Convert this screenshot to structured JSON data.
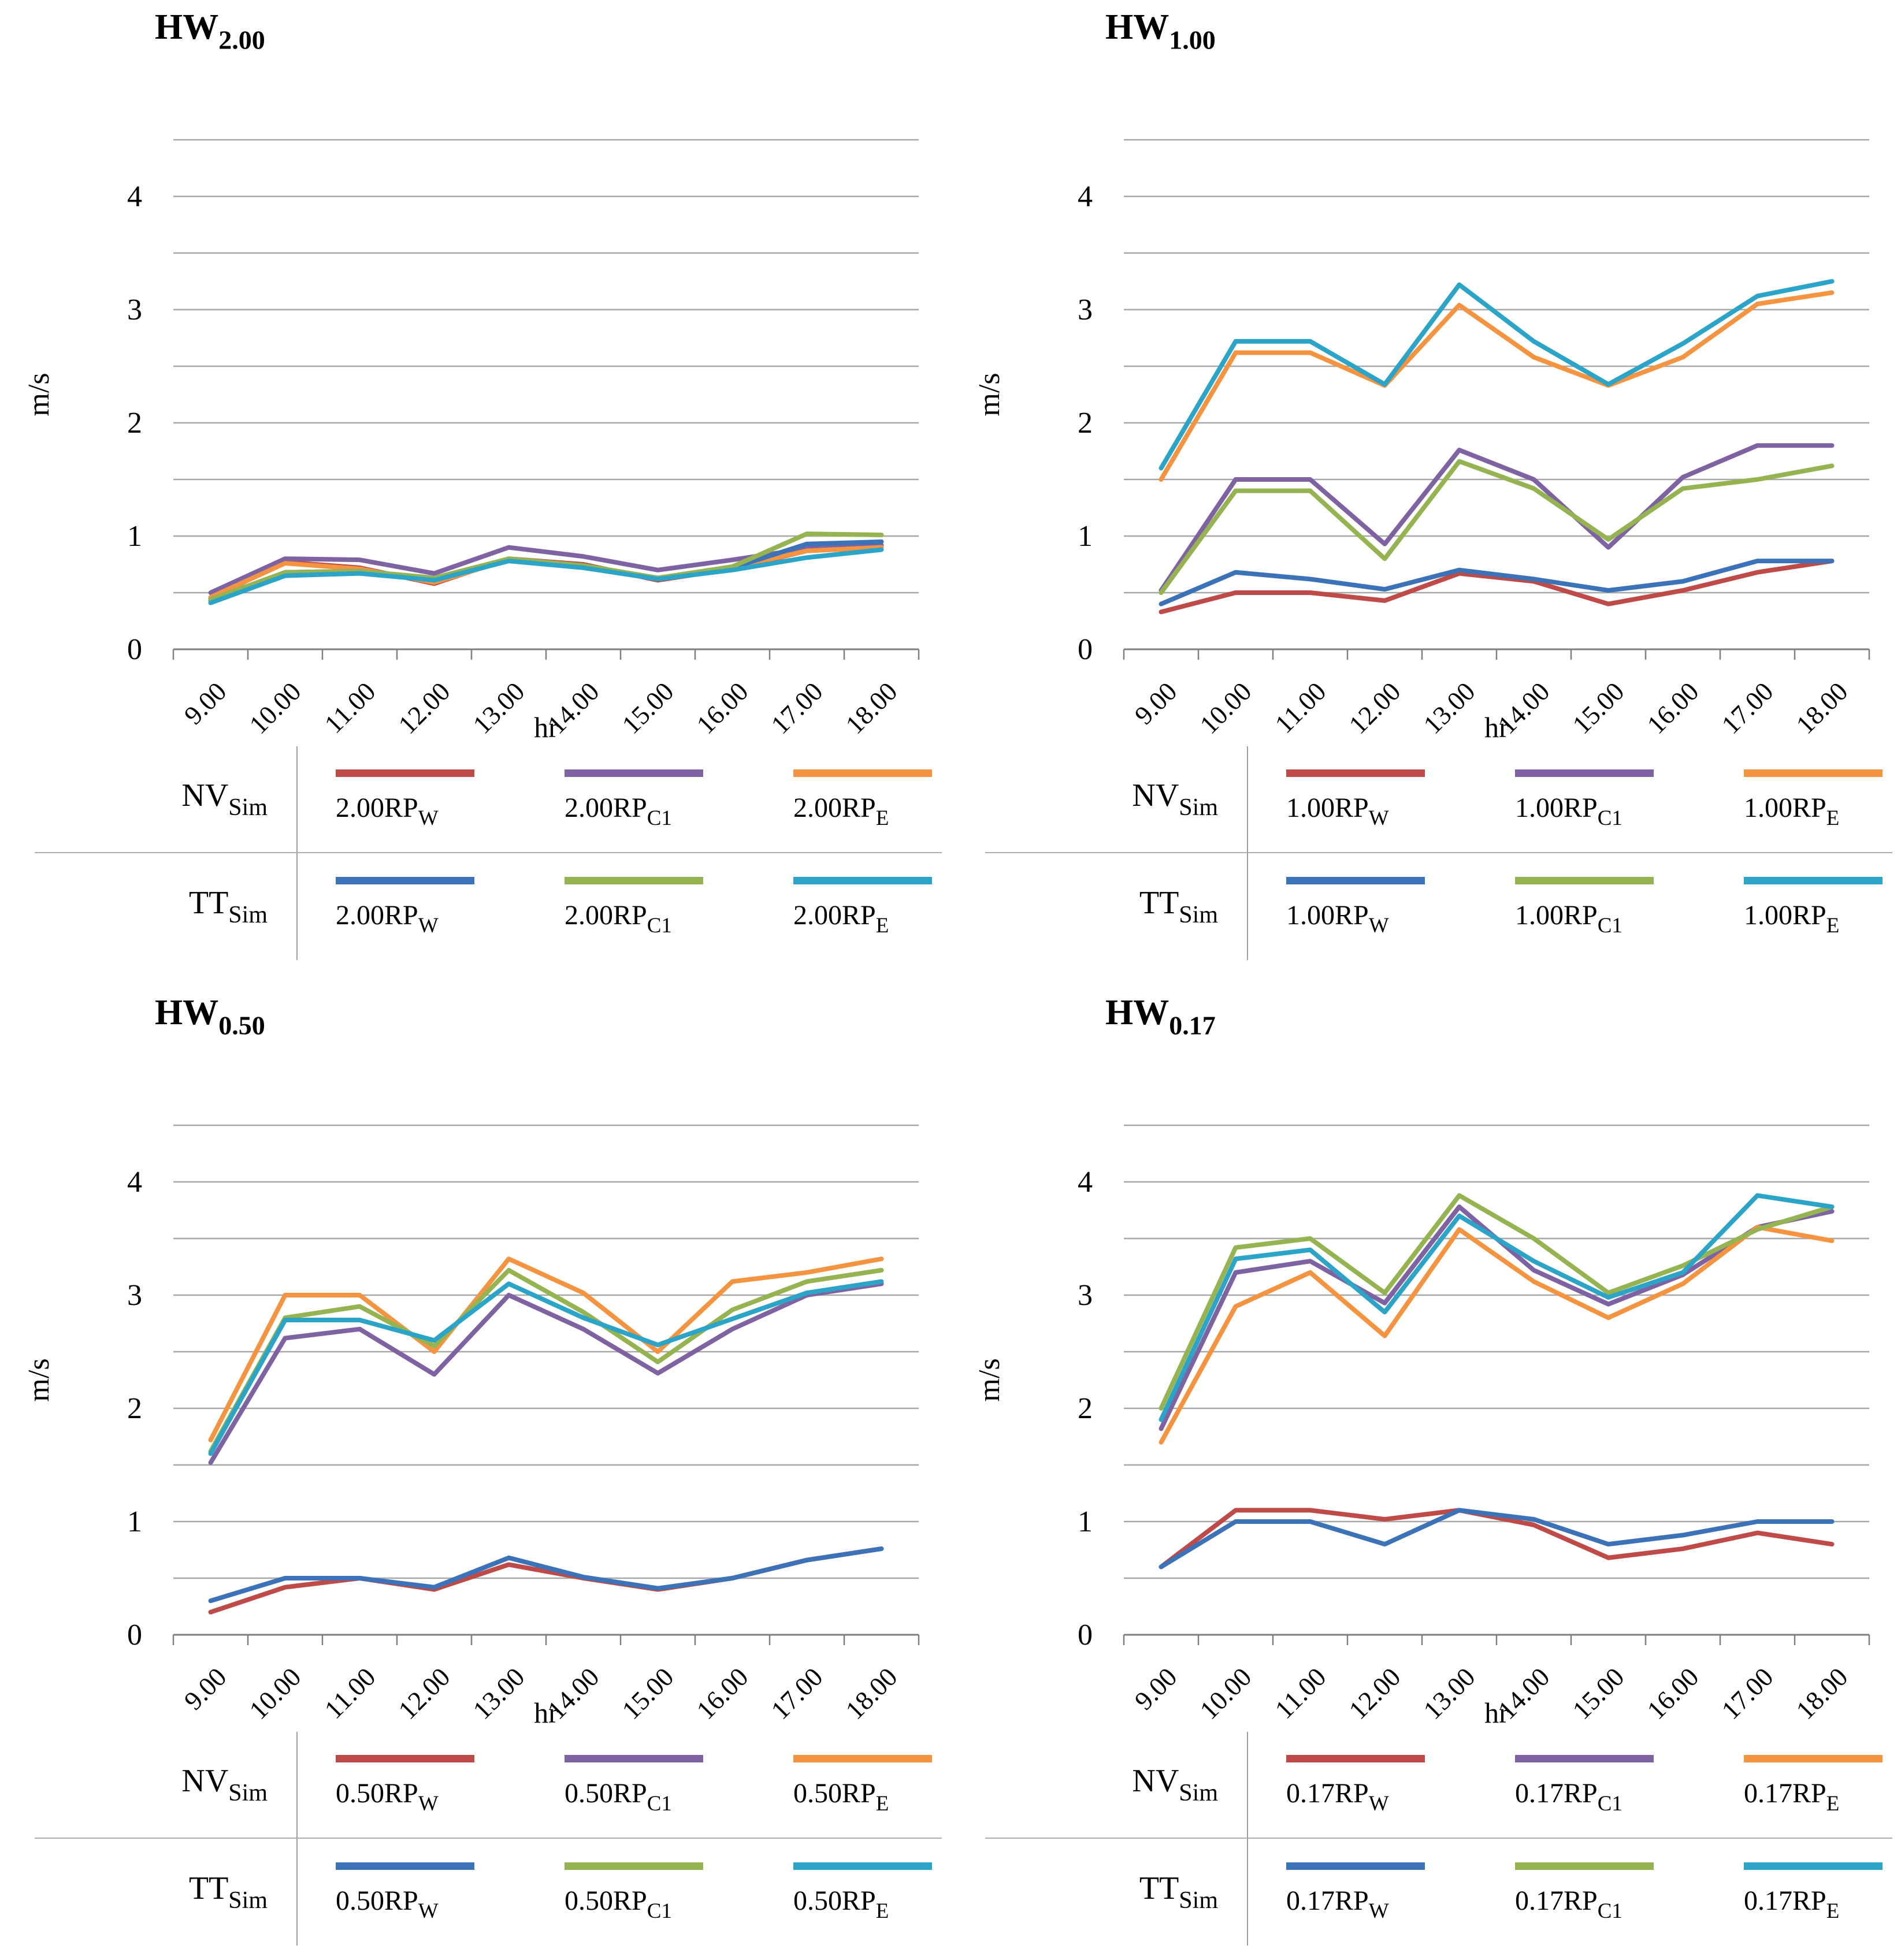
{
  "figure": {
    "background": "#ffffff",
    "grid_color": "#a7a7a7",
    "axis_color": "#7f7f7f",
    "text_color": "#000000"
  },
  "chart_data": [
    {
      "type": "line",
      "panel_id": "hw-2.00",
      "title": "HW",
      "title_subscript": "2.00",
      "ylabel": "m/s",
      "xlabel": "hr",
      "ylim": [
        0,
        4.5
      ],
      "grid_step": 0.5,
      "grid_on": true,
      "legend_position": "bottom-table",
      "ytick_labels": [
        "0",
        "1",
        "2",
        "3",
        "4"
      ],
      "categories": [
        "9.00",
        "10.00",
        "11.00",
        "12.00",
        "13.00",
        "14.00",
        "15.00",
        "16.00",
        "17.00",
        "18.00"
      ],
      "legend_groups": [
        {
          "name": "NV",
          "subscript": "Sim"
        },
        {
          "name": "TT",
          "subscript": "Sim"
        }
      ],
      "series": [
        {
          "group": "NV",
          "legend": "2.00RP",
          "legend_subscript": "W",
          "color": "#be4b48",
          "values": [
            0.45,
            0.77,
            0.72,
            0.58,
            0.8,
            0.75,
            0.61,
            0.71,
            0.87,
            0.9
          ]
        },
        {
          "group": "NV",
          "legend": "2.00RP",
          "legend_subscript": "C1",
          "color": "#7e62a1",
          "values": [
            0.5,
            0.8,
            0.79,
            0.67,
            0.9,
            0.82,
            0.7,
            0.79,
            0.89,
            0.92
          ]
        },
        {
          "group": "NV",
          "legend": "2.00RP",
          "legend_subscript": "E",
          "color": "#f59440",
          "values": [
            0.46,
            0.76,
            0.71,
            0.59,
            0.79,
            0.74,
            0.62,
            0.72,
            0.87,
            0.9
          ]
        },
        {
          "group": "TT",
          "legend": "2.00RP",
          "legend_subscript": "W",
          "color": "#3c72b8",
          "values": [
            0.43,
            0.68,
            0.69,
            0.63,
            0.79,
            0.74,
            0.63,
            0.72,
            0.93,
            0.95
          ]
        },
        {
          "group": "TT",
          "legend": "2.00RP",
          "legend_subscript": "C1",
          "color": "#95b451",
          "values": [
            0.44,
            0.68,
            0.69,
            0.63,
            0.8,
            0.74,
            0.63,
            0.73,
            1.02,
            1.01
          ]
        },
        {
          "group": "TT",
          "legend": "2.00RP",
          "legend_subscript": "E",
          "color": "#2ba4c7",
          "values": [
            0.41,
            0.65,
            0.67,
            0.61,
            0.78,
            0.72,
            0.62,
            0.7,
            0.81,
            0.88
          ]
        }
      ]
    },
    {
      "type": "line",
      "panel_id": "hw-1.00",
      "title": "HW",
      "title_subscript": "1.00",
      "ylabel": "m/s",
      "xlabel": "hr",
      "ylim": [
        0,
        4.5
      ],
      "grid_step": 0.5,
      "grid_on": true,
      "legend_position": "bottom-table",
      "ytick_labels": [
        "0",
        "1",
        "2",
        "3",
        "4"
      ],
      "categories": [
        "9.00",
        "10.00",
        "11.00",
        "12.00",
        "13.00",
        "14.00",
        "15.00",
        "16.00",
        "17.00",
        "18.00"
      ],
      "legend_groups": [
        {
          "name": "NV",
          "subscript": "Sim"
        },
        {
          "name": "TT",
          "subscript": "Sim"
        }
      ],
      "series": [
        {
          "group": "NV",
          "legend": "1.00RP",
          "legend_subscript": "W",
          "color": "#be4b48",
          "values": [
            0.33,
            0.5,
            0.5,
            0.43,
            0.67,
            0.6,
            0.4,
            0.52,
            0.68,
            0.78
          ]
        },
        {
          "group": "NV",
          "legend": "1.00RP",
          "legend_subscript": "C1",
          "color": "#7e62a1",
          "values": [
            0.52,
            1.5,
            1.5,
            0.93,
            1.76,
            1.5,
            0.9,
            1.52,
            1.8,
            1.8
          ]
        },
        {
          "group": "NV",
          "legend": "1.00RP",
          "legend_subscript": "E",
          "color": "#f59440",
          "values": [
            1.5,
            2.62,
            2.62,
            2.33,
            3.04,
            2.58,
            2.33,
            2.58,
            3.05,
            3.15
          ]
        },
        {
          "group": "TT",
          "legend": "1.00RP",
          "legend_subscript": "W",
          "color": "#3c72b8",
          "values": [
            0.4,
            0.68,
            0.62,
            0.53,
            0.7,
            0.62,
            0.52,
            0.6,
            0.78,
            0.78
          ]
        },
        {
          "group": "TT",
          "legend": "1.00RP",
          "legend_subscript": "C1",
          "color": "#95b451",
          "values": [
            0.5,
            1.4,
            1.4,
            0.8,
            1.66,
            1.42,
            0.97,
            1.42,
            1.5,
            1.62
          ]
        },
        {
          "group": "TT",
          "legend": "1.00RP",
          "legend_subscript": "E",
          "color": "#2ba4c7",
          "values": [
            1.6,
            2.72,
            2.72,
            2.34,
            3.22,
            2.72,
            2.34,
            2.7,
            3.12,
            3.25
          ]
        }
      ]
    },
    {
      "type": "line",
      "panel_id": "hw-0.50",
      "title": "HW",
      "title_subscript": "0.50",
      "ylabel": "m/s",
      "xlabel": "hr",
      "ylim": [
        0,
        4.5
      ],
      "grid_step": 0.5,
      "grid_on": true,
      "legend_position": "bottom-table",
      "ytick_labels": [
        "0",
        "1",
        "2",
        "3",
        "4"
      ],
      "categories": [
        "9.00",
        "10.00",
        "11.00",
        "12.00",
        "13.00",
        "14.00",
        "15.00",
        "16.00",
        "17.00",
        "18.00"
      ],
      "legend_groups": [
        {
          "name": "NV",
          "subscript": "Sim"
        },
        {
          "name": "TT",
          "subscript": "Sim"
        }
      ],
      "series": [
        {
          "group": "NV",
          "legend": "0.50RP",
          "legend_subscript": "W",
          "color": "#be4b48",
          "values": [
            0.2,
            0.42,
            0.5,
            0.4,
            0.62,
            0.5,
            0.4,
            0.5,
            0.66,
            0.76
          ]
        },
        {
          "group": "NV",
          "legend": "0.50RP",
          "legend_subscript": "C1",
          "color": "#7e62a1",
          "values": [
            1.52,
            2.62,
            2.7,
            2.3,
            3.0,
            2.7,
            2.31,
            2.7,
            3.0,
            3.1
          ]
        },
        {
          "group": "NV",
          "legend": "0.50RP",
          "legend_subscript": "E",
          "color": "#f59440",
          "values": [
            1.72,
            3.0,
            3.0,
            2.5,
            3.32,
            3.02,
            2.5,
            3.12,
            3.2,
            3.32
          ]
        },
        {
          "group": "TT",
          "legend": "0.50RP",
          "legend_subscript": "W",
          "color": "#3c72b8",
          "values": [
            0.3,
            0.5,
            0.5,
            0.42,
            0.68,
            0.51,
            0.41,
            0.5,
            0.66,
            0.76
          ]
        },
        {
          "group": "TT",
          "legend": "0.50RP",
          "legend_subscript": "C1",
          "color": "#95b451",
          "values": [
            1.62,
            2.8,
            2.9,
            2.55,
            3.22,
            2.85,
            2.41,
            2.87,
            3.12,
            3.22
          ]
        },
        {
          "group": "TT",
          "legend": "0.50RP",
          "legend_subscript": "E",
          "color": "#2ba4c7",
          "values": [
            1.6,
            2.78,
            2.78,
            2.6,
            3.1,
            2.8,
            2.56,
            2.79,
            3.02,
            3.12
          ]
        }
      ]
    },
    {
      "type": "line",
      "panel_id": "hw-0.17",
      "title": "HW",
      "title_subscript": "0.17",
      "ylabel": "m/s",
      "xlabel": "hr",
      "ylim": [
        0,
        4.5
      ],
      "grid_step": 0.5,
      "grid_on": true,
      "legend_position": "bottom-table",
      "ytick_labels": [
        "0",
        "1",
        "2",
        "3",
        "4"
      ],
      "categories": [
        "9.00",
        "10.00",
        "11.00",
        "12.00",
        "13.00",
        "14.00",
        "15.00",
        "16.00",
        "17.00",
        "18.00"
      ],
      "legend_groups": [
        {
          "name": "NV",
          "subscript": "Sim"
        },
        {
          "name": "TT",
          "subscript": "Sim"
        }
      ],
      "series": [
        {
          "group": "NV",
          "legend": "0.17RP",
          "legend_subscript": "W",
          "color": "#be4b48",
          "values": [
            0.6,
            1.1,
            1.1,
            1.02,
            1.1,
            0.97,
            0.68,
            0.76,
            0.9,
            0.8
          ]
        },
        {
          "group": "NV",
          "legend": "0.17RP",
          "legend_subscript": "C1",
          "color": "#7e62a1",
          "values": [
            1.82,
            3.2,
            3.3,
            2.93,
            3.78,
            3.22,
            2.92,
            3.18,
            3.6,
            3.74
          ]
        },
        {
          "group": "NV",
          "legend": "0.17RP",
          "legend_subscript": "E",
          "color": "#f59440",
          "values": [
            1.7,
            2.9,
            3.2,
            2.64,
            3.58,
            3.12,
            2.8,
            3.1,
            3.6,
            3.48
          ]
        },
        {
          "group": "TT",
          "legend": "0.17RP",
          "legend_subscript": "W",
          "color": "#3c72b8",
          "values": [
            0.6,
            1.0,
            1.0,
            0.8,
            1.1,
            1.02,
            0.8,
            0.88,
            1.0,
            1.0
          ]
        },
        {
          "group": "TT",
          "legend": "0.17RP",
          "legend_subscript": "C1",
          "color": "#95b451",
          "values": [
            2.0,
            3.42,
            3.5,
            3.02,
            3.88,
            3.5,
            3.02,
            3.26,
            3.58,
            3.78
          ]
        },
        {
          "group": "TT",
          "legend": "0.17RP",
          "legend_subscript": "E",
          "color": "#2ba4c7",
          "values": [
            1.9,
            3.32,
            3.4,
            2.85,
            3.7,
            3.3,
            2.98,
            3.2,
            3.88,
            3.78
          ]
        }
      ]
    }
  ]
}
